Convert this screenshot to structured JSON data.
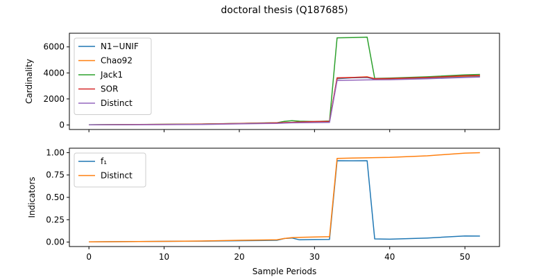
{
  "chart_data": {
    "title": "doctoral thesis (Q187685)",
    "xlabel": "Sample Periods",
    "x_ticks": [
      0,
      10,
      20,
      30,
      40,
      50
    ],
    "panels": [
      {
        "type": "line",
        "ylabel": "Cardinality",
        "xlim": [
          -2.6,
          54.6
        ],
        "ylim": [
          -350,
          7050
        ],
        "y_ticks": [
          0,
          2000,
          4000,
          6000
        ],
        "legend": "top-left",
        "x": [
          0,
          5,
          10,
          15,
          20,
          25,
          26,
          27,
          28,
          30,
          32,
          33,
          35,
          37,
          38,
          40,
          45,
          50,
          52
        ],
        "series": [
          {
            "name": "N1−UNIF",
            "color": "#1f77b4",
            "values": [
              10,
              25,
              40,
              60,
              100,
              150,
              170,
              190,
              210,
              230,
              250,
              3550,
              3620,
              3650,
              3520,
              3540,
              3600,
              3700,
              3720
            ]
          },
          {
            "name": "Chao92",
            "color": "#ff7f0e",
            "values": [
              12,
              27,
              45,
              65,
              110,
              160,
              180,
              200,
              220,
              250,
              280,
              3600,
              3650,
              3700,
              3550,
              3560,
              3650,
              3750,
              3780
            ]
          },
          {
            "name": "Jack1",
            "color": "#2ca02c",
            "values": [
              15,
              30,
              50,
              70,
              120,
              170,
              280,
              330,
              290,
              260,
              300,
              6700,
              6720,
              6750,
              3580,
              3600,
              3700,
              3850,
              3880
            ]
          },
          {
            "name": "SOR",
            "color": "#d62728",
            "values": [
              12,
              28,
              45,
              65,
              110,
              160,
              180,
              200,
              220,
              260,
              280,
              3620,
              3650,
              3680,
              3560,
              3570,
              3650,
              3780,
              3800
            ]
          },
          {
            "name": "Distinct",
            "color": "#9467bd",
            "values": [
              5,
              15,
              25,
              40,
              80,
              120,
              140,
              160,
              170,
              185,
              200,
              3420,
              3440,
              3460,
              3470,
              3480,
              3550,
              3650,
              3680
            ]
          }
        ]
      },
      {
        "type": "line",
        "ylabel": "Indicators",
        "xlim": [
          -2.6,
          54.6
        ],
        "ylim": [
          -0.05,
          1.05
        ],
        "y_ticks": [
          "0.00",
          "0.25",
          "0.50",
          "0.75",
          "1.00"
        ],
        "legend": "top-left",
        "x": [
          0,
          5,
          10,
          15,
          20,
          25,
          26,
          27,
          28,
          30,
          32,
          33,
          35,
          37,
          38,
          40,
          45,
          50,
          52
        ],
        "series": [
          {
            "name": "f₁",
            "color": "#1f77b4",
            "values": [
              0.003,
              0.005,
              0.008,
              0.01,
              0.015,
              0.02,
              0.04,
              0.045,
              0.025,
              0.028,
              0.03,
              0.91,
              0.908,
              0.91,
              0.035,
              0.032,
              0.045,
              0.068,
              0.067
            ]
          },
          {
            "name": "Distinct",
            "color": "#ff7f0e",
            "values": [
              0.003,
              0.005,
              0.008,
              0.012,
              0.02,
              0.025,
              0.04,
              0.05,
              0.052,
              0.056,
              0.06,
              0.935,
              0.94,
              0.942,
              0.945,
              0.947,
              0.965,
              0.995,
              1.0
            ]
          }
        ]
      }
    ]
  }
}
